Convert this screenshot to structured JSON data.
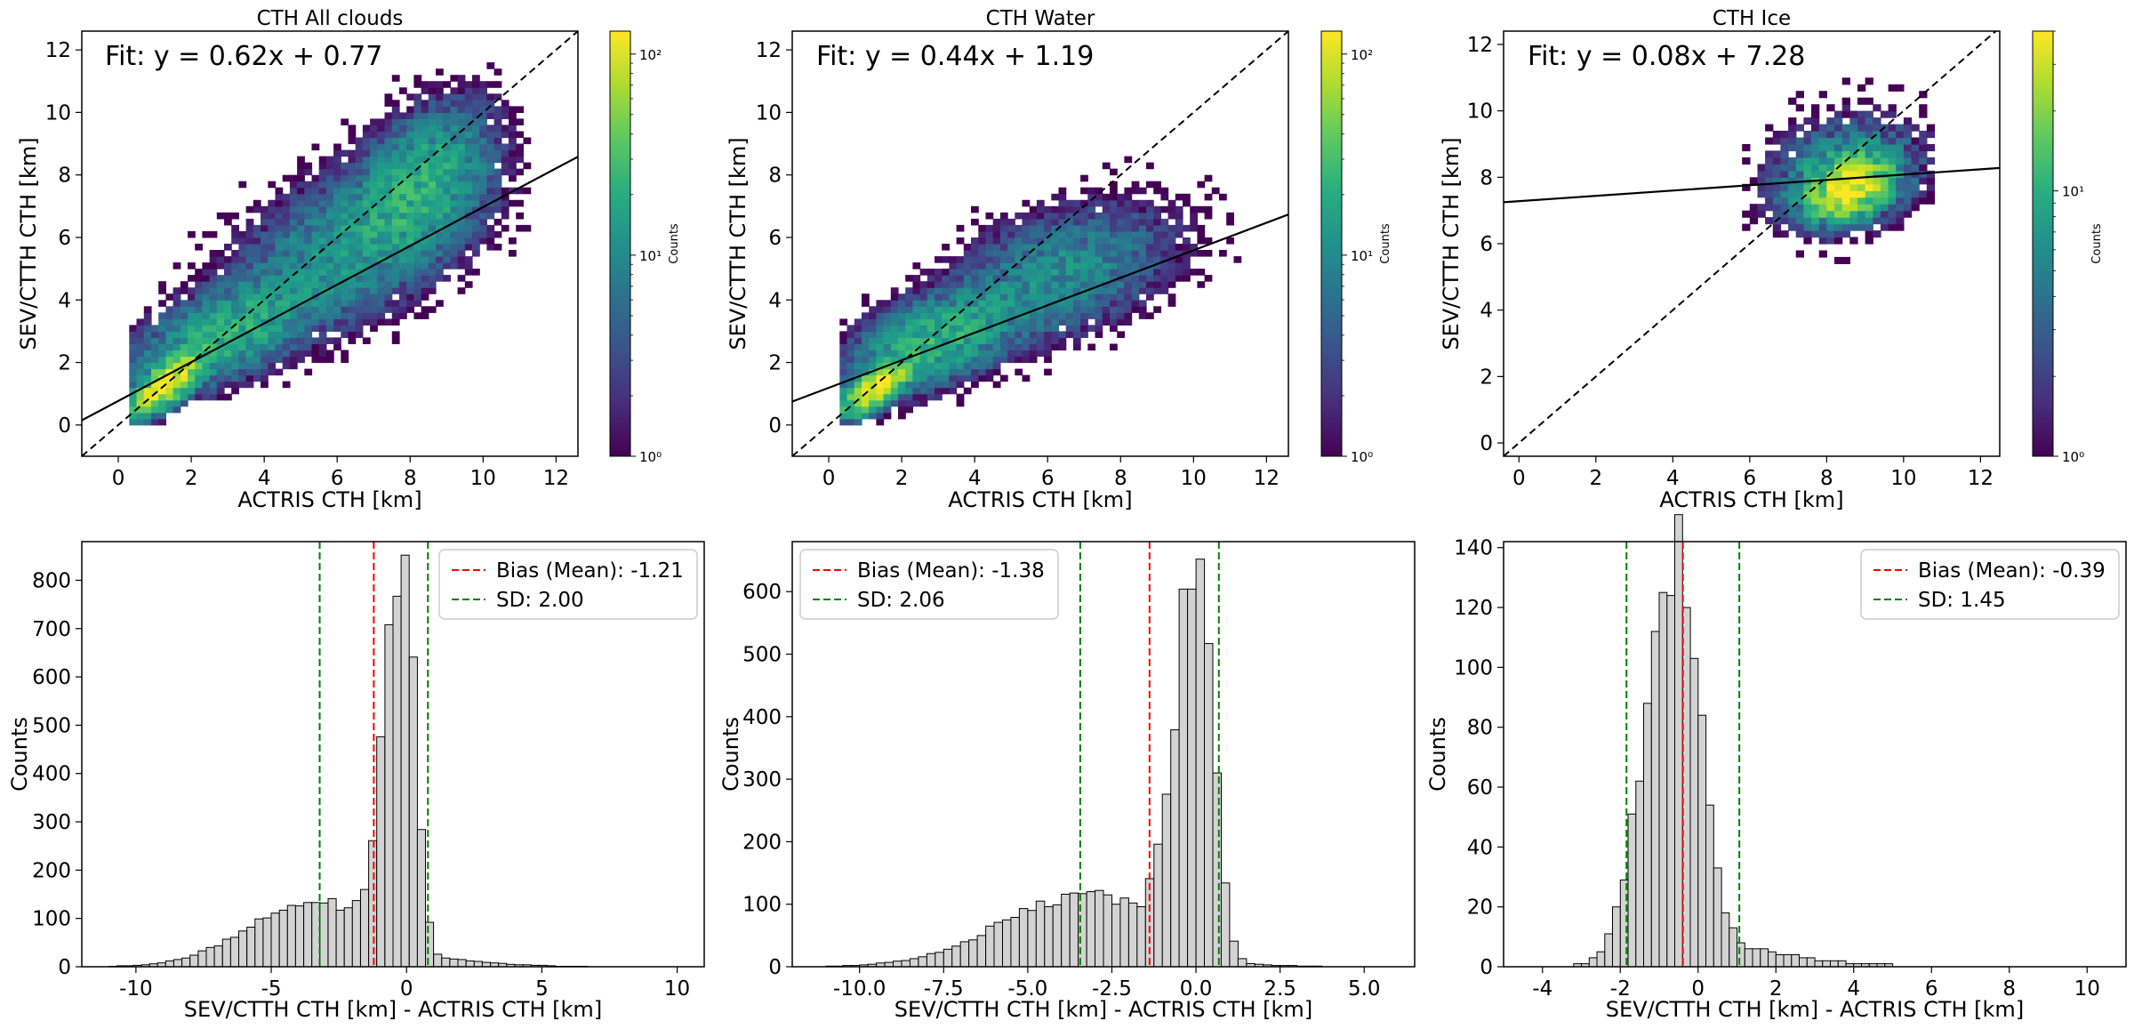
{
  "chart_data": [
    {
      "type": "heatmap",
      "title": "CTH All clouds",
      "xlabel": "ACTRIS CTH [km]",
      "ylabel": "SEV/CTTH CTH [km]",
      "fit_text": "Fit: y = 0.62x + 0.77",
      "fit": {
        "slope": 0.62,
        "intercept": 0.77
      },
      "identity_line": true,
      "xlim": [
        -1,
        12.6
      ],
      "ylim": [
        -1,
        12.6
      ],
      "xticks": [
        0,
        2,
        4,
        6,
        8,
        10,
        12
      ],
      "yticks": [
        0,
        2,
        4,
        6,
        8,
        10,
        12
      ],
      "colorbar": {
        "label": "Counts",
        "scale": "log",
        "ticks": [
          "10⁰",
          "10¹",
          "10²"
        ],
        "range": [
          1,
          130
        ]
      },
      "density": [
        {
          "x": 1.2,
          "y": 1.2,
          "sx": 0.5,
          "sy": 0.5,
          "peak": 120,
          "r": 0.7
        },
        {
          "x": 2.8,
          "y": 2.8,
          "sx": 1.4,
          "sy": 1.0,
          "peak": 22,
          "r": 0.6
        },
        {
          "x": 6.5,
          "y": 5.8,
          "sx": 1.8,
          "sy": 1.5,
          "peak": 14,
          "r": 0.5
        },
        {
          "x": 8.3,
          "y": 7.8,
          "sx": 1.0,
          "sy": 1.3,
          "peak": 18,
          "r": 0.4
        }
      ]
    },
    {
      "type": "heatmap",
      "title": "CTH Water",
      "xlabel": "ACTRIS CTH [km]",
      "ylabel": "SEV/CTTH CTH [km]",
      "fit_text": "Fit: y = 0.44x + 1.19",
      "fit": {
        "slope": 0.44,
        "intercept": 1.19
      },
      "identity_line": true,
      "xlim": [
        -1,
        12.6
      ],
      "ylim": [
        -1,
        12.6
      ],
      "xticks": [
        0,
        2,
        4,
        6,
        8,
        10,
        12
      ],
      "yticks": [
        0,
        2,
        4,
        6,
        8,
        10,
        12
      ],
      "colorbar": {
        "label": "Counts",
        "scale": "log",
        "ticks": [
          "10⁰",
          "10¹",
          "10²"
        ],
        "range": [
          1,
          130
        ]
      },
      "density": [
        {
          "x": 1.2,
          "y": 1.1,
          "sx": 0.5,
          "sy": 0.45,
          "peak": 110,
          "r": 0.7
        },
        {
          "x": 2.8,
          "y": 2.6,
          "sx": 1.3,
          "sy": 0.9,
          "peak": 22,
          "r": 0.5
        },
        {
          "x": 6.3,
          "y": 4.8,
          "sx": 1.7,
          "sy": 1.2,
          "peak": 11,
          "r": 0.4
        }
      ]
    },
    {
      "type": "heatmap",
      "title": "CTH Ice",
      "xlabel": "ACTRIS CTH [km]",
      "ylabel": "SEV/CTTH CTH [km]",
      "fit_text": "Fit: y = 0.08x + 7.28",
      "fit": {
        "slope": 0.08,
        "intercept": 7.28
      },
      "identity_line": true,
      "xlim": [
        -0.4,
        12.5
      ],
      "ylim": [
        -0.4,
        12.4
      ],
      "xticks": [
        0,
        2,
        4,
        6,
        8,
        10,
        12
      ],
      "yticks": [
        0,
        2,
        4,
        6,
        8,
        10,
        12
      ],
      "colorbar": {
        "label": "Counts",
        "scale": "log",
        "ticks": [
          "10⁰",
          "10¹"
        ],
        "range": [
          1,
          40
        ]
      },
      "density": [
        {
          "x": 8.5,
          "y": 7.6,
          "sx": 0.6,
          "sy": 0.5,
          "peak": 38,
          "r": 0.3
        },
        {
          "x": 8.4,
          "y": 8.0,
          "sx": 1.2,
          "sy": 1.0,
          "peak": 8,
          "r": 0.2
        }
      ]
    },
    {
      "type": "bar",
      "subtype": "histogram",
      "xlabel": "SEV/CTTH CTH [km] - ACTRIS CTH [km]",
      "ylabel": "Counts",
      "xlim": [
        -12,
        11
      ],
      "ylim": [
        0,
        880
      ],
      "xticks": [
        -10,
        -5,
        0,
        5,
        10
      ],
      "yticks": [
        0,
        100,
        200,
        300,
        400,
        500,
        600,
        700,
        800
      ],
      "bin_start": -11,
      "bin_width": 0.3,
      "bins": 70,
      "hist_shape": {
        "mode": -0.1,
        "peak": 840,
        "s_left": 0.65,
        "s_right": 0.42,
        "tail_amp": 135,
        "tail_center": -3.4,
        "tail_sigma": 2.4,
        "pos_amp": 20,
        "pos_sigma": 2.5
      },
      "bias": -1.21,
      "sd": 2.0,
      "legend": {
        "bias": "Bias (Mean): -1.21",
        "sd": "SD: 2.00",
        "position": "top-right"
      }
    },
    {
      "type": "bar",
      "subtype": "histogram",
      "xlabel": "SEV/CTTH CTH [km] - ACTRIS CTH [km]",
      "ylabel": "Counts",
      "xlim": [
        -12,
        6.5
      ],
      "ylim": [
        0,
        680
      ],
      "xticks": [
        -10.0,
        -7.5,
        -5.0,
        -2.5,
        0.0,
        2.5,
        5.0
      ],
      "yticks": [
        0,
        100,
        200,
        300,
        400,
        500,
        600
      ],
      "bin_start": -11,
      "bin_width": 0.25,
      "bins": 68,
      "hist_shape": {
        "mode": 0.1,
        "peak": 650,
        "s_left": 0.65,
        "s_right": 0.42,
        "tail_amp": 115,
        "tail_center": -3.4,
        "tail_sigma": 2.4,
        "pos_amp": 8,
        "pos_sigma": 1.5
      },
      "bias": -1.38,
      "sd": 2.06,
      "legend": {
        "bias": "Bias (Mean): -1.38",
        "sd": "SD: 2.06",
        "position": "top-left"
      }
    },
    {
      "type": "bar",
      "subtype": "histogram",
      "xlabel": "SEV/CTTH CTH [km] - ACTRIS CTH [km]",
      "ylabel": "Counts",
      "xlim": [
        -5,
        11
      ],
      "ylim": [
        0,
        142
      ],
      "xticks": [
        -4,
        -2,
        0,
        2,
        4,
        6,
        8,
        10
      ],
      "yticks": [
        0,
        20,
        40,
        60,
        80,
        100,
        120,
        140
      ],
      "bin_start": -3.4,
      "bin_width": 0.2,
      "bins": 65,
      "hist_shape": {
        "mode": -0.6,
        "peak": 138,
        "s_left": 0.75,
        "s_right": 0.6,
        "tail_amp": 0,
        "tail_center": -1.5,
        "tail_sigma": 1.0,
        "pos_amp": 8,
        "pos_sigma": 2.4
      },
      "bias": -0.39,
      "sd": 1.45,
      "legend": {
        "bias": "Bias (Mean): -0.39",
        "sd": "SD: 1.45",
        "position": "top-right"
      }
    }
  ]
}
